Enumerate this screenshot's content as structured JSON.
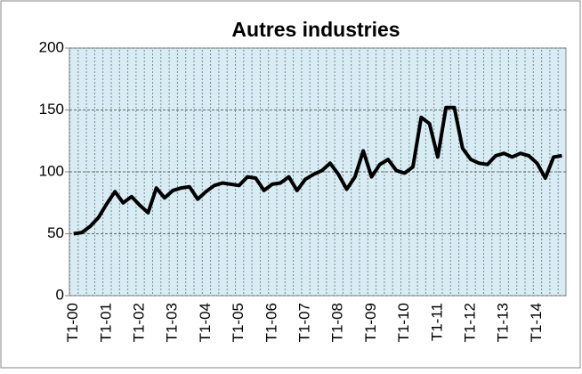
{
  "chart_data": {
    "type": "line",
    "title": "Autres industries",
    "categories": [
      "T1-00",
      null,
      null,
      null,
      "T1-01",
      null,
      null,
      null,
      "T1-02",
      null,
      null,
      null,
      "T1-03",
      null,
      null,
      null,
      "T1-04",
      null,
      null,
      null,
      "T1-05",
      null,
      null,
      null,
      "T1-06",
      null,
      null,
      null,
      "T1-07",
      null,
      null,
      null,
      "T1-08",
      null,
      null,
      null,
      "T1-09",
      null,
      null,
      null,
      "T1-10",
      null,
      null,
      null,
      "T1-11",
      null,
      null,
      null,
      "T1-12",
      null,
      null,
      null,
      "T1-13",
      null,
      null,
      null,
      "T1-14",
      null,
      null,
      null
    ],
    "values": [
      50,
      51,
      56,
      63,
      74,
      84,
      75,
      80,
      73,
      67,
      87,
      79,
      85,
      87,
      88,
      78,
      84,
      89,
      91,
      90,
      89,
      96,
      95,
      85,
      90,
      91,
      96,
      85,
      94,
      98,
      101,
      107,
      98,
      86,
      96,
      117,
      96,
      106,
      110,
      101,
      99,
      104,
      144,
      139,
      112,
      152,
      152,
      119,
      110,
      107,
      106,
      113,
      115,
      112,
      115,
      113,
      107,
      95,
      112,
      113
    ],
    "color": "#000000",
    "ylim": [
      0,
      200
    ],
    "yticks": [
      0,
      50,
      100,
      150,
      200
    ],
    "grid": true
  }
}
